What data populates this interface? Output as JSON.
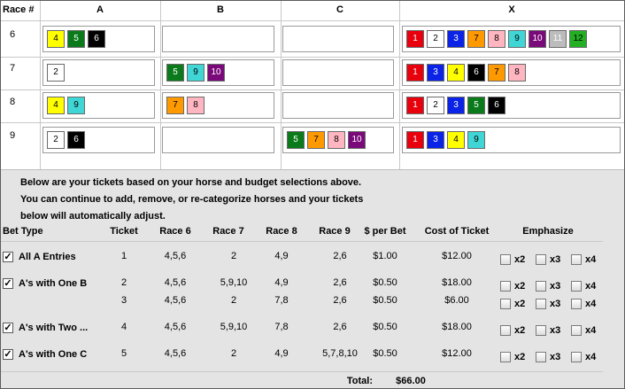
{
  "race_grid": {
    "header_race": "Race #",
    "columns": [
      "A",
      "B",
      "C",
      "X"
    ],
    "rows": [
      {
        "race": "6",
        "A": [
          "4",
          "5",
          "6"
        ],
        "B": [],
        "C": [],
        "X": [
          "1",
          "2",
          "3",
          "7",
          "8",
          "9",
          "10",
          "11",
          "12"
        ]
      },
      {
        "race": "7",
        "A": [
          "2"
        ],
        "B": [
          "5",
          "9",
          "10"
        ],
        "C": [],
        "X": [
          "1",
          "3",
          "4",
          "6",
          "7",
          "8"
        ]
      },
      {
        "race": "8",
        "A": [
          "4",
          "9"
        ],
        "B": [
          "7",
          "8"
        ],
        "C": [],
        "X": [
          "1",
          "2",
          "3",
          "5",
          "6"
        ]
      },
      {
        "race": "9",
        "A": [
          "2",
          "6"
        ],
        "B": [],
        "C": [
          "5",
          "7",
          "8",
          "10"
        ],
        "X": [
          "1",
          "3",
          "4",
          "9"
        ]
      }
    ]
  },
  "horse_colors": {
    "1": {
      "bg": "#e8000d",
      "fg": "#ffffff"
    },
    "2": {
      "bg": "#ffffff",
      "fg": "#000000"
    },
    "3": {
      "bg": "#0a23e6",
      "fg": "#ffffff"
    },
    "4": {
      "bg": "#ffff00",
      "fg": "#000000"
    },
    "5": {
      "bg": "#0b7a1a",
      "fg": "#ffffff"
    },
    "6": {
      "bg": "#000000",
      "fg": "#ffffff"
    },
    "7": {
      "bg": "#ff9900",
      "fg": "#000000"
    },
    "8": {
      "bg": "#ffb6c1",
      "fg": "#000000"
    },
    "9": {
      "bg": "#40d6d6",
      "fg": "#000000"
    },
    "10": {
      "bg": "#7a0a7a",
      "fg": "#ffffff"
    },
    "11": {
      "bg": "#bcbcbc",
      "fg": "#ffffff"
    },
    "12": {
      "bg": "#22b022",
      "fg": "#000000"
    }
  },
  "intro_text": "Below are your tickets based on your horse and budget selections above. You can continue to add, remove, or re-categorize horses and your tickets below will automatically adjust.",
  "tickets": {
    "headers": {
      "bet_type": "Bet Type",
      "ticket": "Ticket",
      "race6": "Race 6",
      "race7": "Race 7",
      "race8": "Race 8",
      "race9": "Race 9",
      "per_bet": "$ per Bet",
      "cost": "Cost of Ticket",
      "emphasize": "Emphasize"
    },
    "emphasize_labels": [
      "x2",
      "x3",
      "x4"
    ],
    "groups": [
      {
        "name": "All A Entries",
        "checked": true,
        "rows": [
          {
            "ticket": "1",
            "race6": "4,5,6",
            "race7": "2",
            "race8": "4,9",
            "race9": "2,6",
            "per_bet": "$1.00",
            "cost": "$12.00"
          }
        ]
      },
      {
        "name": "A's with One B",
        "checked": true,
        "rows": [
          {
            "ticket": "2",
            "race6": "4,5,6",
            "race7": "5,9,10",
            "race8": "4,9",
            "race9": "2,6",
            "per_bet": "$0.50",
            "cost": "$18.00"
          },
          {
            "ticket": "3",
            "race6": "4,5,6",
            "race7": "2",
            "race8": "7,8",
            "race9": "2,6",
            "per_bet": "$0.50",
            "cost": "$6.00"
          }
        ]
      },
      {
        "name": "A's with Two ...",
        "checked": true,
        "rows": [
          {
            "ticket": "4",
            "race6": "4,5,6",
            "race7": "5,9,10",
            "race8": "7,8",
            "race9": "2,6",
            "per_bet": "$0.50",
            "cost": "$18.00"
          }
        ]
      },
      {
        "name": "A's with One C",
        "checked": true,
        "rows": [
          {
            "ticket": "5",
            "race6": "4,5,6",
            "race7": "2",
            "race8": "4,9",
            "race9": "5,7,8,10",
            "per_bet": "$0.50",
            "cost": "$12.00"
          }
        ]
      }
    ],
    "total_label": "Total:",
    "total_value": "$66.00"
  }
}
